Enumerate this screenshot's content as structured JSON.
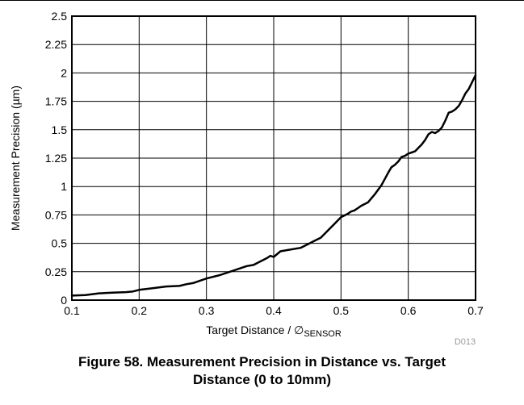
{
  "chart_data": {
    "type": "line",
    "xlabel_main": "Target Distance / ∅",
    "xlabel_sub": "SENSOR",
    "ylabel": "Measurement Precision (µm)",
    "xlim": [
      0.1,
      0.7
    ],
    "ylim": [
      0,
      2.5
    ],
    "xticks": [
      "0.1",
      "0.2",
      "0.3",
      "0.4",
      "0.5",
      "0.6",
      "0.7"
    ],
    "yticks": [
      "0",
      "0.25",
      "0.5",
      "0.75",
      "1",
      "1.25",
      "1.5",
      "1.75",
      "2",
      "2.25",
      "2.5"
    ],
    "grid": true,
    "code": "D013",
    "series": [
      {
        "color": "#000000",
        "x": [
          0.1,
          0.12,
          0.14,
          0.16,
          0.18,
          0.19,
          0.2,
          0.22,
          0.24,
          0.26,
          0.27,
          0.28,
          0.3,
          0.32,
          0.34,
          0.355,
          0.36,
          0.37,
          0.38,
          0.39,
          0.395,
          0.4,
          0.41,
          0.42,
          0.44,
          0.45,
          0.46,
          0.47,
          0.48,
          0.49,
          0.5,
          0.51,
          0.515,
          0.52,
          0.525,
          0.53,
          0.54,
          0.55,
          0.56,
          0.57,
          0.575,
          0.58,
          0.585,
          0.59,
          0.595,
          0.6,
          0.61,
          0.615,
          0.62,
          0.625,
          0.63,
          0.635,
          0.64,
          0.645,
          0.65,
          0.655,
          0.66,
          0.665,
          0.67,
          0.675,
          0.68,
          0.685,
          0.69,
          0.695,
          0.7
        ],
        "y": [
          0.04,
          0.045,
          0.06,
          0.065,
          0.07,
          0.075,
          0.09,
          0.105,
          0.12,
          0.125,
          0.14,
          0.15,
          0.19,
          0.22,
          0.26,
          0.29,
          0.3,
          0.31,
          0.34,
          0.37,
          0.39,
          0.38,
          0.43,
          0.44,
          0.46,
          0.49,
          0.52,
          0.55,
          0.61,
          0.67,
          0.73,
          0.76,
          0.78,
          0.79,
          0.81,
          0.83,
          0.86,
          0.93,
          1.01,
          1.12,
          1.17,
          1.19,
          1.22,
          1.26,
          1.27,
          1.29,
          1.31,
          1.34,
          1.37,
          1.41,
          1.46,
          1.48,
          1.47,
          1.49,
          1.52,
          1.58,
          1.65,
          1.66,
          1.68,
          1.71,
          1.76,
          1.82,
          1.86,
          1.92,
          1.98
        ]
      }
    ]
  },
  "caption": {
    "line1": "Figure 58. Measurement Precision in Distance vs. Target",
    "line2": "Distance (0 to 10mm)"
  }
}
